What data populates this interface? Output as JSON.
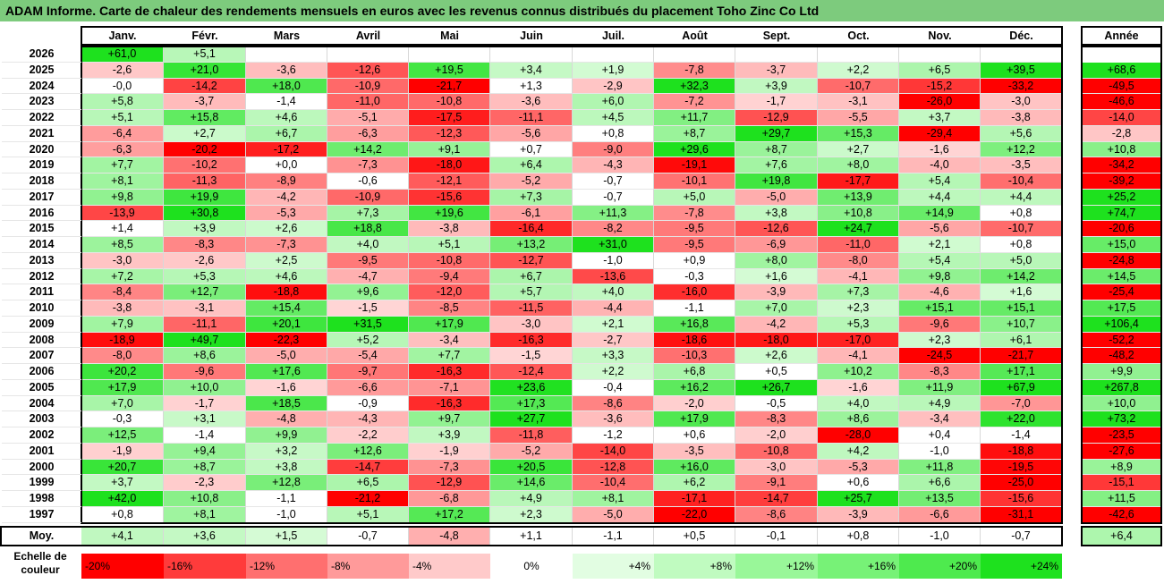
{
  "title": "ADAM Informe. Carte de chaleur des rendements mensuels en euros avec les revenus connus distribués du placement Toho Zinc Co Ltd",
  "chart_data": {
    "type": "heatmap",
    "months": [
      "Janv.",
      "Févr.",
      "Mars",
      "Avril",
      "Mai",
      "Juin",
      "Juil.",
      "Août",
      "Sept.",
      "Oct.",
      "Nov.",
      "Déc."
    ],
    "year_header": "Année",
    "avg_label": "Moy.",
    "rows": [
      {
        "year": "2026",
        "values": [
          "+61,0",
          "+5,1",
          "",
          "",
          "",
          "",
          "",
          "",
          "",
          "",
          "",
          ""
        ],
        "annual": ""
      },
      {
        "year": "2025",
        "values": [
          "-2,6",
          "+21,0",
          "-3,6",
          "-12,6",
          "+19,5",
          "+3,4",
          "+1,9",
          "-7,8",
          "-3,7",
          "+2,2",
          "+6,5",
          "+39,5"
        ],
        "annual": "+68,6"
      },
      {
        "year": "2024",
        "values": [
          "-0,0",
          "-14,2",
          "+18,0",
          "-10,9",
          "-21,7",
          "+1,3",
          "-2,9",
          "+32,3",
          "+3,9",
          "-10,7",
          "-15,2",
          "-33,2"
        ],
        "annual": "-49,5"
      },
      {
        "year": "2023",
        "values": [
          "+5,8",
          "-3,7",
          "-1,4",
          "-11,0",
          "-10,8",
          "-3,6",
          "+6,0",
          "-7,2",
          "-1,7",
          "-3,1",
          "-26,0",
          "-3,0"
        ],
        "annual": "-46,6"
      },
      {
        "year": "2022",
        "values": [
          "+5,1",
          "+15,8",
          "+4,6",
          "-5,1",
          "-17,5",
          "-11,1",
          "+4,5",
          "+11,7",
          "-12,9",
          "-5,5",
          "+3,7",
          "-3,8"
        ],
        "annual": "-14,0"
      },
      {
        "year": "2021",
        "values": [
          "-6,4",
          "+2,7",
          "+6,7",
          "-6,3",
          "-12,3",
          "-5,6",
          "+0,8",
          "+8,7",
          "+29,7",
          "+15,3",
          "-29,4",
          "+5,6"
        ],
        "annual": "-2,8"
      },
      {
        "year": "2020",
        "values": [
          "-6,3",
          "-20,2",
          "-17,2",
          "+14,2",
          "+9,1",
          "+0,7",
          "-9,0",
          "+29,6",
          "+8,7",
          "+2,7",
          "-1,6",
          "+12,2"
        ],
        "annual": "+10,8"
      },
      {
        "year": "2019",
        "values": [
          "+7,7",
          "-10,2",
          "+0,0",
          "-7,3",
          "-18,0",
          "+6,4",
          "-4,3",
          "-19,1",
          "+7,6",
          "+8,0",
          "-4,0",
          "-3,5"
        ],
        "annual": "-34,2"
      },
      {
        "year": "2018",
        "values": [
          "+8,1",
          "-11,3",
          "-8,9",
          "-0,6",
          "-12,1",
          "-5,2",
          "-0,7",
          "-10,1",
          "+19,8",
          "-17,7",
          "+5,4",
          "-10,4"
        ],
        "annual": "-39,2"
      },
      {
        "year": "2017",
        "values": [
          "+9,8",
          "+19,9",
          "-4,2",
          "-10,9",
          "-15,6",
          "+7,3",
          "-0,7",
          "+5,0",
          "-5,0",
          "+13,9",
          "+4,4",
          "+4,4"
        ],
        "annual": "+25,2"
      },
      {
        "year": "2016",
        "values": [
          "-13,9",
          "+30,8",
          "-5,3",
          "+7,3",
          "+19,6",
          "-6,1",
          "+11,3",
          "-7,8",
          "+3,8",
          "+10,8",
          "+14,9",
          "+0,8"
        ],
        "annual": "+74,7"
      },
      {
        "year": "2015",
        "values": [
          "+1,4",
          "+3,9",
          "+2,6",
          "+18,8",
          "-3,8",
          "-16,4",
          "-8,2",
          "-9,5",
          "-12,6",
          "+24,7",
          "-5,6",
          "-10,7"
        ],
        "annual": "-20,6"
      },
      {
        "year": "2014",
        "values": [
          "+8,5",
          "-8,3",
          "-7,3",
          "+4,0",
          "+5,1",
          "+13,2",
          "+31,0",
          "-9,5",
          "-6,9",
          "-11,0",
          "+2,1",
          "+0,8"
        ],
        "annual": "+15,0"
      },
      {
        "year": "2013",
        "values": [
          "-3,0",
          "-2,6",
          "+2,5",
          "-9,5",
          "-10,8",
          "-12,7",
          "-1,0",
          "+0,9",
          "+8,0",
          "-8,0",
          "+5,4",
          "+5,0"
        ],
        "annual": "-24,8"
      },
      {
        "year": "2012",
        "values": [
          "+7,2",
          "+5,3",
          "+4,6",
          "-4,7",
          "-9,4",
          "+6,7",
          "-13,6",
          "-0,3",
          "+1,6",
          "-4,1",
          "+9,8",
          "+14,2"
        ],
        "annual": "+14,5"
      },
      {
        "year": "2011",
        "values": [
          "-8,4",
          "+12,7",
          "-18,8",
          "+9,6",
          "-12,0",
          "+5,7",
          "+4,0",
          "-16,0",
          "-3,9",
          "+7,3",
          "-4,6",
          "+1,6"
        ],
        "annual": "-25,4"
      },
      {
        "year": "2010",
        "values": [
          "-3,8",
          "-3,1",
          "+15,4",
          "-1,5",
          "-8,5",
          "-11,5",
          "-4,4",
          "-1,1",
          "+7,0",
          "+2,3",
          "+15,1",
          "+15,1"
        ],
        "annual": "+17,5"
      },
      {
        "year": "2009",
        "values": [
          "+7,9",
          "-11,1",
          "+20,1",
          "+31,5",
          "+17,9",
          "-3,0",
          "+2,1",
          "+16,8",
          "-4,2",
          "+5,3",
          "-9,6",
          "+10,7"
        ],
        "annual": "+106,4"
      },
      {
        "year": "2008",
        "values": [
          "-18,9",
          "+49,7",
          "-22,3",
          "+5,2",
          "-3,4",
          "-16,3",
          "-2,7",
          "-18,6",
          "-18,0",
          "-17,0",
          "+2,3",
          "+6,1"
        ],
        "annual": "-52,2"
      },
      {
        "year": "2007",
        "values": [
          "-8,0",
          "+8,6",
          "-5,0",
          "-5,4",
          "+7,7",
          "-1,5",
          "+3,3",
          "-10,3",
          "+2,6",
          "-4,1",
          "-24,5",
          "-21,7"
        ],
        "annual": "-48,2"
      },
      {
        "year": "2006",
        "values": [
          "+20,2",
          "-9,6",
          "+17,6",
          "-9,7",
          "-16,3",
          "-12,4",
          "+2,2",
          "+6,8",
          "+0,5",
          "+10,2",
          "-8,3",
          "+17,1"
        ],
        "annual": "+9,9"
      },
      {
        "year": "2005",
        "values": [
          "+17,9",
          "+10,0",
          "-1,6",
          "-6,6",
          "-7,1",
          "+23,6",
          "-0,4",
          "+16,2",
          "+26,7",
          "-1,6",
          "+11,9",
          "+67,9"
        ],
        "annual": "+267,8"
      },
      {
        "year": "2004",
        "values": [
          "+7,0",
          "-1,7",
          "+18,5",
          "-0,9",
          "-16,3",
          "+17,3",
          "-8,6",
          "-2,0",
          "-0,5",
          "+4,0",
          "+4,9",
          "-7,0"
        ],
        "annual": "+10,0"
      },
      {
        "year": "2003",
        "values": [
          "-0,3",
          "+3,1",
          "-4,8",
          "-4,3",
          "+9,7",
          "+27,7",
          "-3,6",
          "+17,9",
          "-8,3",
          "+8,6",
          "-3,4",
          "+22,0"
        ],
        "annual": "+73,2"
      },
      {
        "year": "2002",
        "values": [
          "+12,5",
          "-1,4",
          "+9,9",
          "-2,2",
          "+3,9",
          "-11,8",
          "-1,2",
          "+0,6",
          "-2,0",
          "-28,0",
          "+0,4",
          "-1,4"
        ],
        "annual": "-23,5"
      },
      {
        "year": "2001",
        "values": [
          "-1,9",
          "+9,4",
          "+3,2",
          "+12,6",
          "-1,9",
          "-5,2",
          "-14,0",
          "-3,5",
          "-10,8",
          "+4,2",
          "-1,0",
          "-18,8"
        ],
        "annual": "-27,6"
      },
      {
        "year": "2000",
        "values": [
          "+20,7",
          "+8,7",
          "+3,8",
          "-14,7",
          "-7,3",
          "+20,5",
          "-12,8",
          "+16,0",
          "-3,0",
          "-5,3",
          "+11,8",
          "-19,5"
        ],
        "annual": "+8,9"
      },
      {
        "year": "1999",
        "values": [
          "+3,7",
          "-2,3",
          "+12,8",
          "+6,5",
          "-12,9",
          "+14,6",
          "-10,4",
          "+6,2",
          "-9,1",
          "+0,6",
          "+6,6",
          "-25,0"
        ],
        "annual": "-15,1"
      },
      {
        "year": "1998",
        "values": [
          "+42,0",
          "+10,8",
          "-1,1",
          "-21,2",
          "-6,8",
          "+4,9",
          "+8,1",
          "-17,1",
          "-14,7",
          "+25,7",
          "+13,5",
          "-15,6"
        ],
        "annual": "+11,5"
      },
      {
        "year": "1997",
        "values": [
          "+0,8",
          "+8,1",
          "-1,0",
          "+5,1",
          "+17,2",
          "+2,3",
          "-5,0",
          "-22,0",
          "-8,6",
          "-3,9",
          "-6,6",
          "-31,1"
        ],
        "annual": "-42,6"
      }
    ],
    "averages": {
      "values": [
        "+4,1",
        "+3,6",
        "+1,5",
        "-0,7",
        "-4,8",
        "+1,1",
        "-1,1",
        "+0,5",
        "-0,1",
        "+0,8",
        "-1,0",
        "-0,7"
      ],
      "annual": "+6,4"
    },
    "color_scale": {
      "label": "Echelle de couleur",
      "stops": [
        "-20%",
        "-16%",
        "-12%",
        "-8%",
        "-4%",
        "0%",
        "+4%",
        "+8%",
        "+12%",
        "+16%",
        "+20%",
        "+24%"
      ],
      "stop_values": [
        -20,
        -16,
        -12,
        -8,
        -4,
        0,
        4,
        8,
        12,
        16,
        20,
        24
      ],
      "colors": [
        "#ff0000",
        "#ff3b3b",
        "#ff6f6f",
        "#ff9a9a",
        "#ffcaca",
        "#ffffff",
        "#e2fde2",
        "#c0fbc0",
        "#99f799",
        "#77f277",
        "#4eea4e",
        "#1ee11e"
      ]
    }
  }
}
